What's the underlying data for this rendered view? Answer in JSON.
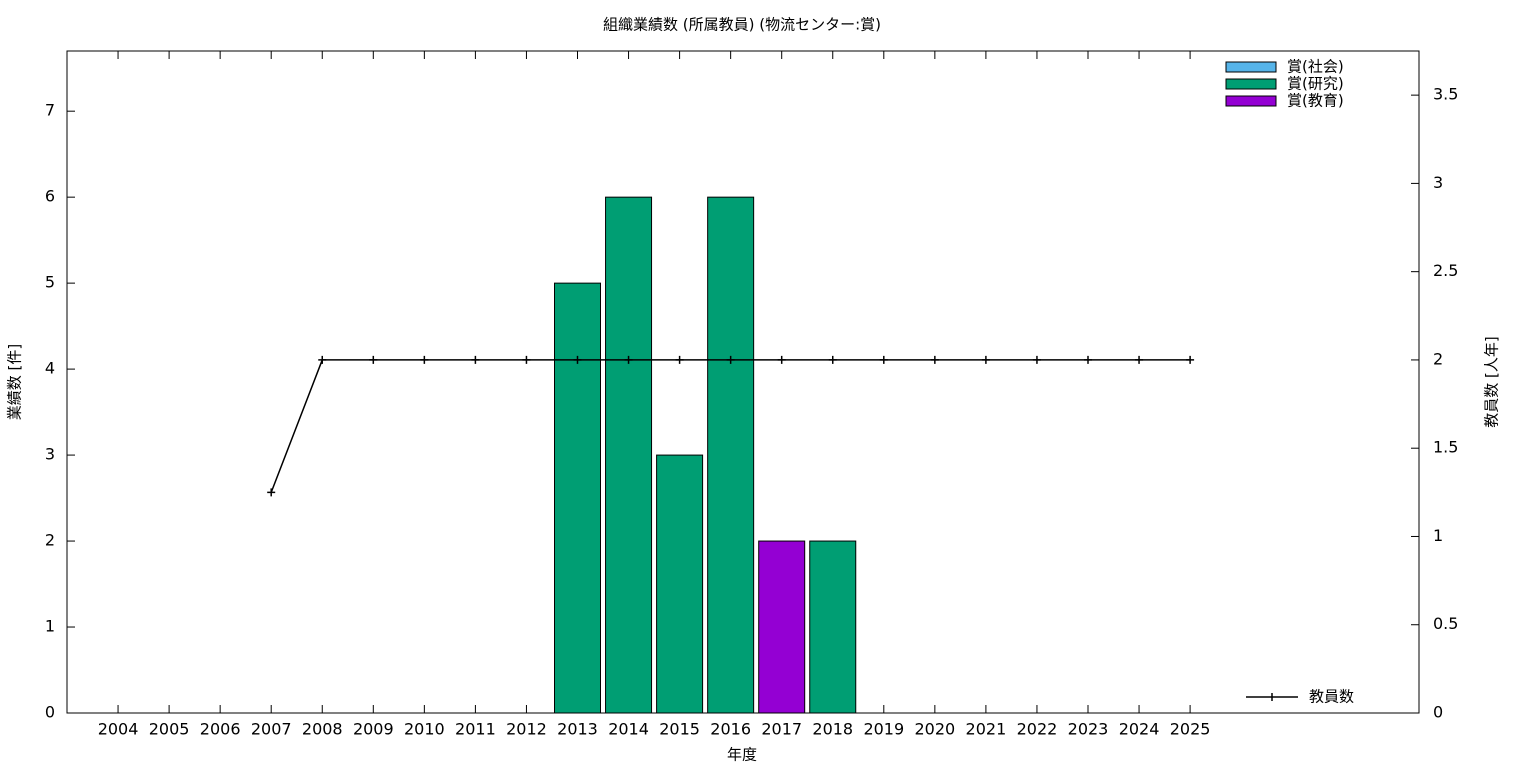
{
  "chart_data": {
    "type": "bar",
    "stacked": true,
    "title": "組織業績数 (所属教員) (物流センター:賞)",
    "x_label": "年度",
    "y_label": "業績数 [件]",
    "y2_label": "教員数 [人年]",
    "categories": [
      "2004",
      "2005",
      "2006",
      "2007",
      "2008",
      "2009",
      "2010",
      "2011",
      "2012",
      "2013",
      "2014",
      "2015",
      "2016",
      "2017",
      "2018",
      "2019",
      "2020",
      "2021",
      "2022",
      "2023",
      "2024",
      "2025"
    ],
    "series": [
      {
        "name": "賞(社会)",
        "type": "bar",
        "color": "#56b4e9",
        "values": [
          0,
          0,
          0,
          0,
          0,
          0,
          0,
          0,
          0,
          0,
          0,
          0,
          0,
          0,
          0,
          0,
          0,
          0,
          0,
          0,
          0,
          0
        ]
      },
      {
        "name": "賞(研究)",
        "type": "bar",
        "color": "#009e73",
        "values": [
          0,
          0,
          0,
          0,
          0,
          0,
          0,
          0,
          0,
          5,
          6,
          3,
          6,
          0,
          2,
          0,
          0,
          0,
          0,
          0,
          0,
          0
        ]
      },
      {
        "name": "賞(教育)",
        "type": "bar",
        "color": "#9400d3",
        "values": [
          0,
          0,
          0,
          0,
          0,
          0,
          0,
          0,
          0,
          0,
          0,
          0,
          0,
          2,
          0,
          0,
          0,
          0,
          0,
          0,
          0,
          0
        ]
      },
      {
        "name": "教員数",
        "type": "line",
        "axis": "y2",
        "color": "#000000",
        "values": [
          null,
          null,
          null,
          1.25,
          2,
          2,
          2,
          2,
          2,
          2,
          2,
          2,
          2,
          2,
          2,
          2,
          2,
          2,
          2,
          2,
          2,
          2
        ]
      }
    ],
    "ylim": [
      0,
      7.7
    ],
    "yticks": [
      0,
      1,
      2,
      3,
      4,
      5,
      6,
      7
    ],
    "y2lim": [
      0,
      3.75
    ],
    "y2ticks": [
      0,
      0.5,
      1,
      1.5,
      2,
      2.5,
      3,
      3.5
    ]
  }
}
